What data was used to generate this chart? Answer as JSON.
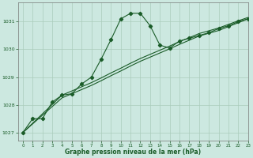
{
  "title": "Graphe pression niveau de la mer (hPa)",
  "background_color": "#cce8e0",
  "grid_color": "#aaccbb",
  "line_color": "#1a5c28",
  "marker_color": "#1a5c28",
  "xlim": [
    -0.5,
    23
  ],
  "ylim": [
    1026.7,
    1031.7
  ],
  "yticks": [
    1027,
    1028,
    1029,
    1030,
    1031
  ],
  "xticks": [
    0,
    1,
    2,
    3,
    4,
    5,
    6,
    7,
    8,
    9,
    10,
    11,
    12,
    13,
    14,
    15,
    16,
    17,
    18,
    19,
    20,
    21,
    22,
    23
  ],
  "line1_x": [
    0,
    1,
    2,
    3,
    4,
    5,
    6,
    7,
    8,
    9,
    10,
    11,
    12,
    13,
    14,
    15,
    16,
    17,
    18,
    19,
    20,
    21,
    22,
    23
  ],
  "line1_y": [
    1027.0,
    1027.5,
    1027.5,
    1028.1,
    1028.35,
    1028.4,
    1028.75,
    1029.0,
    1029.65,
    1030.35,
    1031.1,
    1031.3,
    1031.3,
    1030.85,
    1030.15,
    1030.05,
    1030.3,
    1030.4,
    1030.5,
    1030.6,
    1030.75,
    1030.85,
    1031.0,
    1031.1
  ],
  "line2_x": [
    0,
    4,
    5,
    6,
    7,
    8,
    9,
    10,
    11,
    12,
    13,
    14,
    15,
    16,
    17,
    18,
    19,
    20,
    21,
    22,
    23
  ],
  "line2_y": [
    1027.0,
    1028.25,
    1028.4,
    1028.55,
    1028.7,
    1028.87,
    1029.05,
    1029.22,
    1029.4,
    1029.57,
    1029.72,
    1029.87,
    1030.02,
    1030.18,
    1030.33,
    1030.48,
    1030.58,
    1030.68,
    1030.82,
    1030.96,
    1031.1
  ],
  "line3_x": [
    0,
    4,
    5,
    6,
    7,
    8,
    9,
    10,
    11,
    12,
    13,
    14,
    15,
    16,
    17,
    18,
    19,
    20,
    21,
    22,
    23
  ],
  "line3_y": [
    1027.0,
    1028.35,
    1028.5,
    1028.65,
    1028.8,
    1028.97,
    1029.15,
    1029.32,
    1029.5,
    1029.67,
    1029.82,
    1029.97,
    1030.12,
    1030.28,
    1030.42,
    1030.57,
    1030.67,
    1030.77,
    1030.9,
    1031.03,
    1031.15
  ]
}
